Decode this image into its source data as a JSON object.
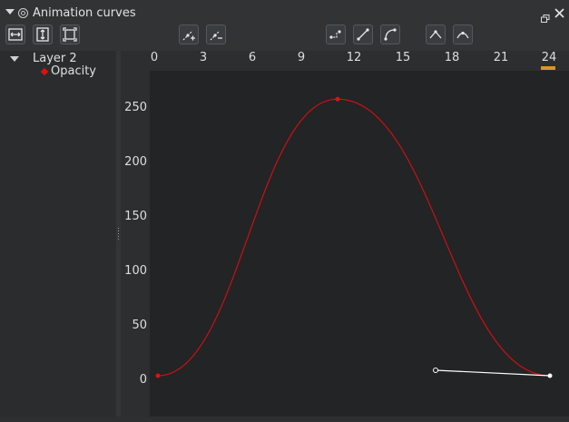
{
  "window": {
    "title": "Animation curves",
    "float_icon": "float-window-icon",
    "close_icon": "close-icon"
  },
  "toolbar": {
    "buttons": [
      {
        "name": "zoom-horizontal-fit-button",
        "icon": "fit-horizontal-icon"
      },
      {
        "name": "zoom-vertical-fit-button",
        "icon": "fit-vertical-icon"
      },
      {
        "name": "zoom-fit-all-button",
        "icon": "fit-all-icon"
      },
      {
        "name": "add-keyframe-button",
        "icon": "add-key-icon"
      },
      {
        "name": "remove-keyframe-button",
        "icon": "remove-key-icon"
      },
      {
        "name": "interpolation-constant-button",
        "icon": "constant-interp-icon"
      },
      {
        "name": "interpolation-linear-button",
        "icon": "linear-interp-icon"
      },
      {
        "name": "interpolation-bezier-button",
        "icon": "bezier-interp-icon"
      },
      {
        "name": "tangents-sharp-button",
        "icon": "sharp-tangent-icon"
      },
      {
        "name": "tangents-smooth-button",
        "icon": "smooth-tangent-icon"
      }
    ]
  },
  "tree": {
    "layer": "Layer 2",
    "channel": "Opacity",
    "channel_color": "#e01010"
  },
  "ruler": {
    "x_ticks": [
      "0",
      "3",
      "6",
      "9",
      "12",
      "15",
      "18",
      "21",
      "24"
    ],
    "y_ticks": [
      "250",
      "200",
      "150",
      "100",
      "50",
      "0"
    ],
    "current_frame": 24,
    "current_frame_color": "#d9952a"
  },
  "curve": {
    "color": "#cc1010",
    "keyframes": [
      {
        "frame": 0,
        "value": 5
      },
      {
        "frame": 11,
        "value": 259
      },
      {
        "frame": 24,
        "value": 5
      }
    ],
    "selected_tangent_handle": {
      "frame": 17,
      "value": 10
    }
  }
}
